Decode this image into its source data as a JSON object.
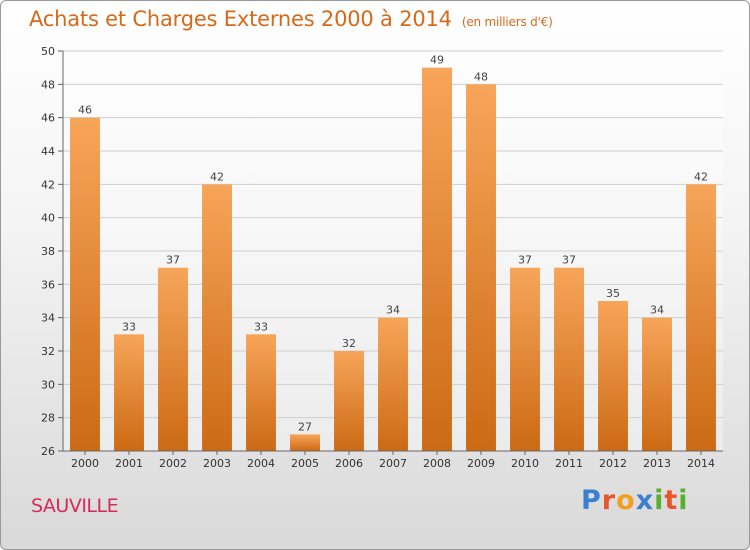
{
  "chart_data": {
    "type": "bar",
    "title": "Achats et Charges Externes 2000 à 2014",
    "subtitle": "(en milliers d'€)",
    "categories": [
      "2000",
      "2001",
      "2002",
      "2003",
      "2004",
      "2005",
      "2006",
      "2007",
      "2008",
      "2009",
      "2010",
      "2011",
      "2012",
      "2013",
      "2014"
    ],
    "values": [
      46,
      33,
      37,
      42,
      33,
      27,
      32,
      34,
      49,
      48,
      37,
      37,
      35,
      34,
      42
    ],
    "ylim": [
      26,
      50
    ],
    "yticks": [
      26,
      28,
      30,
      32,
      34,
      36,
      38,
      40,
      42,
      44,
      46,
      48,
      50
    ],
    "grid": true,
    "legend": "none",
    "bar_color_top": "#f7a55a",
    "bar_color_bottom": "#cc6a14",
    "grid_color": "#cfcfcf"
  },
  "commune": "SAUVILLE",
  "logo": {
    "letters": [
      {
        "ch": "P",
        "color": "#3a7fd0"
      },
      {
        "ch": "r",
        "color": "#e8552a"
      },
      {
        "ch": "o",
        "color": "#f0a020"
      },
      {
        "ch": "x",
        "color": "#3a7fd0"
      },
      {
        "ch": "i",
        "color": "#58b030"
      },
      {
        "ch": "t",
        "color": "#e8552a"
      },
      {
        "ch": "i",
        "color": "#58b030"
      }
    ]
  }
}
